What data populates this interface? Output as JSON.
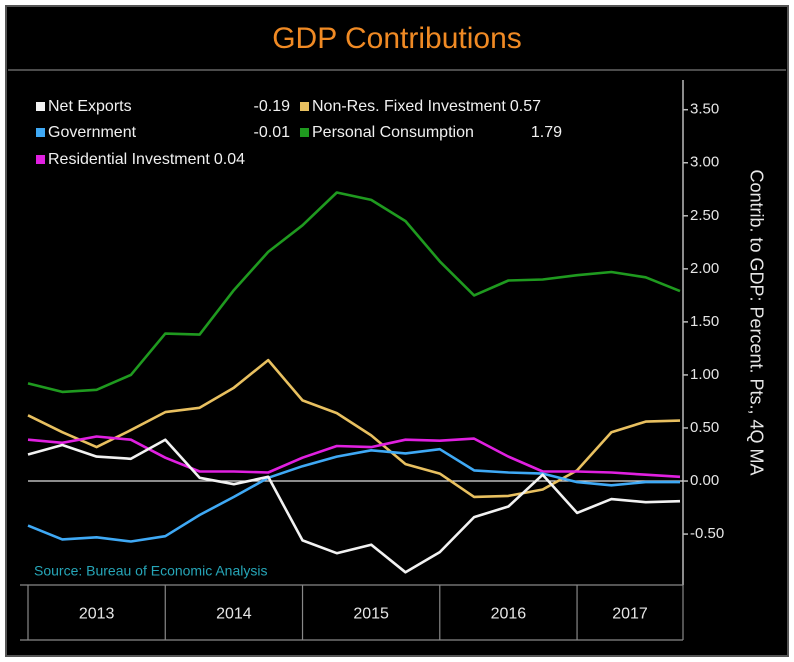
{
  "chart_data": {
    "type": "line",
    "title": "GDP Contributions",
    "y_axis_label": "Contrib. to GDP: Percent. Pts., 4Q MA",
    "source": "Source: Bureau of Economic Analysis",
    "x": [
      2013,
      2013.25,
      2013.5,
      2013.75,
      2014,
      2014.25,
      2014.5,
      2014.75,
      2015,
      2015.25,
      2015.5,
      2015.75,
      2016,
      2016.25,
      2016.5,
      2016.75,
      2017,
      2017.25,
      2017.5,
      2017.75
    ],
    "xlim": [
      2013,
      2017.75
    ],
    "xticks": [
      2013,
      2014,
      2015,
      2016,
      2017
    ],
    "ylim": [
      -0.98,
      3.78
    ],
    "yticks": [
      {
        "value": 3.5,
        "label": "3.50"
      },
      {
        "value": 3,
        "label": "3.00"
      },
      {
        "value": 2.5,
        "label": "2.50"
      },
      {
        "value": 2,
        "label": "2.00"
      },
      {
        "value": 1.5,
        "label": "1.50"
      },
      {
        "value": 1,
        "label": "1.00"
      },
      {
        "value": 0.5,
        "label": "0.50"
      },
      {
        "value": 0,
        "label": "0.00"
      },
      {
        "value": -0.5,
        "label": "-0.50"
      }
    ],
    "y_axis_side": "right",
    "grid": false,
    "zero_line": true,
    "legend": "top-left",
    "series": [
      {
        "name": "Net Exports",
        "color": "#f2f2f2",
        "values": [
          0.25,
          0.34,
          0.23,
          0.21,
          0.39,
          0.03,
          -0.03,
          0.04,
          -0.56,
          -0.68,
          -0.6,
          -0.86,
          -0.67,
          -0.34,
          -0.24,
          0.06,
          -0.3,
          -0.17,
          -0.2,
          -0.19
        ]
      },
      {
        "name": "Government",
        "color": "#3fa9f5",
        "values": [
          -0.42,
          -0.55,
          -0.53,
          -0.57,
          -0.52,
          -0.32,
          -0.15,
          0.03,
          0.14,
          0.23,
          0.29,
          0.26,
          0.3,
          0.1,
          0.08,
          0.07,
          -0.01,
          -0.04,
          -0.01,
          -0.01
        ]
      },
      {
        "name": "Residential Investment",
        "color": "#e020e0",
        "values": [
          0.39,
          0.36,
          0.42,
          0.39,
          0.22,
          0.09,
          0.09,
          0.08,
          0.22,
          0.33,
          0.32,
          0.39,
          0.38,
          0.4,
          0.23,
          0.09,
          0.09,
          0.08,
          0.06,
          0.04
        ]
      },
      {
        "name": "Non-Res. Fixed Investment",
        "color": "#e8c060",
        "values": [
          0.62,
          0.46,
          0.32,
          0.48,
          0.65,
          0.69,
          0.88,
          1.14,
          0.76,
          0.64,
          0.43,
          0.16,
          0.07,
          -0.15,
          -0.14,
          -0.08,
          0.1,
          0.46,
          0.56,
          0.57
        ]
      },
      {
        "name": "Personal Consumption",
        "color": "#1f9a1f",
        "values": [
          0.92,
          0.84,
          0.86,
          1.0,
          1.39,
          1.38,
          1.8,
          2.16,
          2.41,
          2.72,
          2.65,
          2.45,
          2.07,
          1.75,
          1.89,
          1.9,
          1.94,
          1.97,
          1.92,
          1.79
        ]
      }
    ]
  }
}
